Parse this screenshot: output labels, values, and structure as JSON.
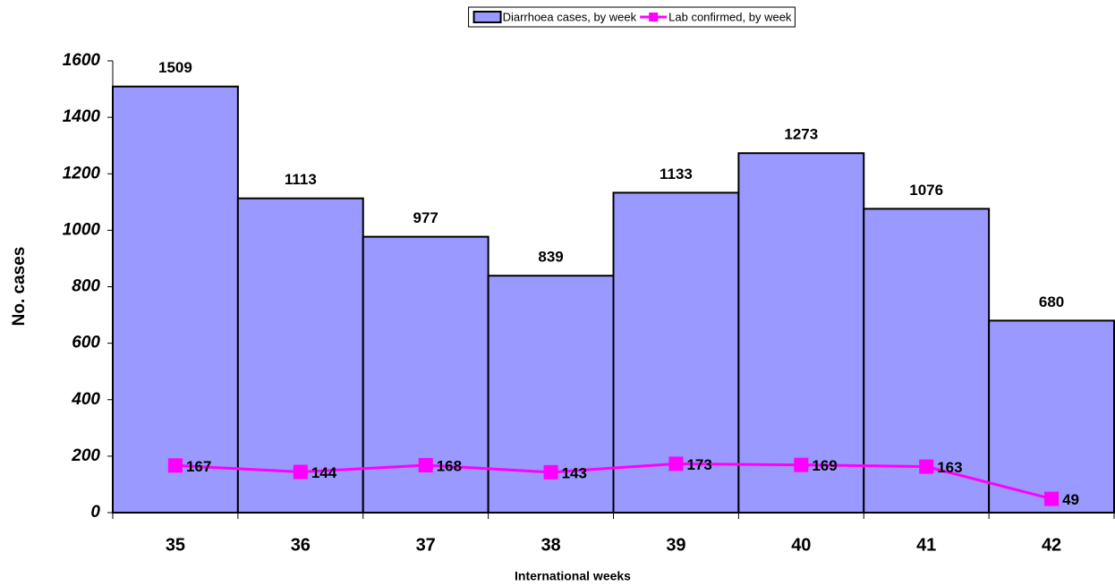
{
  "chart_data": {
    "type": "bar",
    "x_label": "International weeks",
    "y_label": "No. cases",
    "categories": [
      "35",
      "36",
      "37",
      "38",
      "39",
      "40",
      "41",
      "42"
    ],
    "series": [
      {
        "name": "Diarrhoea cases, by week",
        "type": "bar",
        "color": "#9999ff",
        "values": [
          1509,
          1113,
          977,
          839,
          1133,
          1273,
          1076,
          680
        ]
      },
      {
        "name": "Lab confirmed, by week",
        "type": "line",
        "color": "#ff00ff",
        "values": [
          167,
          144,
          168,
          143,
          173,
          169,
          163,
          49
        ]
      }
    ],
    "ylim": [
      0,
      1600
    ],
    "yticks": [
      0,
      200,
      400,
      600,
      800,
      1000,
      1200,
      1400,
      1600
    ],
    "legend": "top"
  }
}
